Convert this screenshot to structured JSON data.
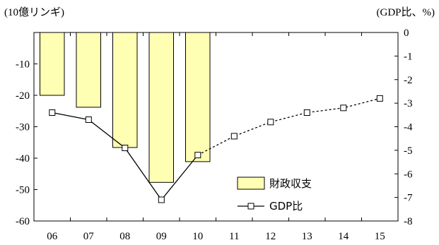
{
  "chart_data": {
    "type": "bar+line",
    "categories": [
      "06",
      "07",
      "08",
      "09",
      "10",
      "11",
      "12",
      "13",
      "14",
      "15"
    ],
    "left_axis": {
      "unit_label": "(10億リンギ)",
      "ylim": [
        -60,
        0
      ],
      "ticks": [
        0,
        -10,
        -20,
        -30,
        -40,
        -50,
        -60
      ],
      "tick_labels": [
        "",
        "-10",
        "-20",
        "-30",
        "-40",
        "-50",
        "-60"
      ]
    },
    "right_axis": {
      "unit_label": "(GDP比、%)",
      "ylim": [
        -8,
        0
      ],
      "ticks": [
        0,
        -1,
        -2,
        -3,
        -4,
        -5,
        -6,
        -7,
        -8
      ],
      "tick_labels": [
        "0",
        "-1",
        "-2",
        "-3",
        "-4",
        "-5",
        "-6",
        "-7",
        "-8"
      ]
    },
    "series": [
      {
        "name": "財政収支",
        "kind": "bar",
        "axis": "left",
        "color": "#ffffb3",
        "values": [
          -20.0,
          -23.8,
          -36.6,
          -47.7,
          -41.1,
          null,
          null,
          null,
          null,
          null
        ]
      },
      {
        "name": "GDP比",
        "kind": "line",
        "axis": "right",
        "values": [
          -3.4,
          -3.7,
          -4.9,
          -7.1,
          -5.2,
          -4.4,
          -3.8,
          -3.4,
          -3.2,
          -2.8
        ],
        "solid_until_index": 4
      }
    ],
    "legend_position": "bottom-right",
    "grid": false
  }
}
